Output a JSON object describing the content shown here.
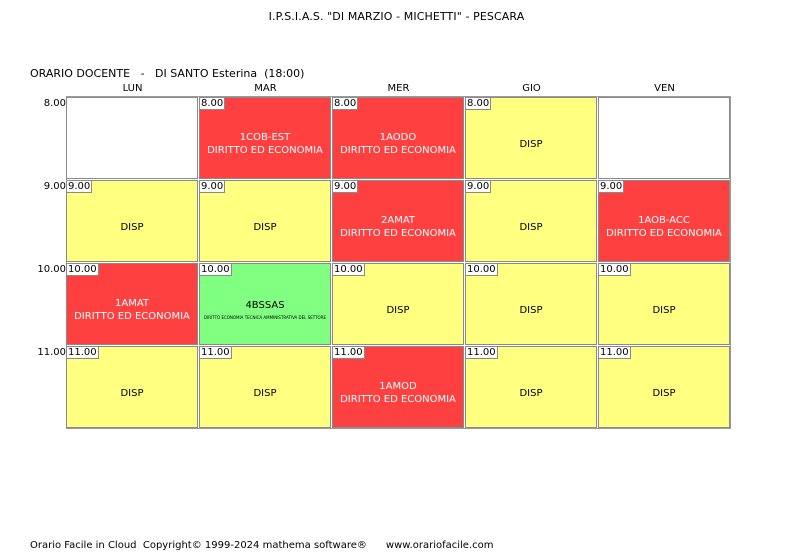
{
  "header": {
    "school": "I.P.S.I.A.S. \"DI MARZIO - MICHETTI\" - PESCARA",
    "teacher_line": "ORARIO DOCENTE   -   DI SANTO Esterina  (18:00)"
  },
  "days": [
    "LUN",
    "MAR",
    "MER",
    "GIO",
    "VEN"
  ],
  "hours": [
    "8.00",
    "9.00",
    "10.00",
    "11.00"
  ],
  "colors": {
    "lesson": "#ff4040",
    "disp": "#ffff80",
    "special": "#80ff80",
    "empty": "#ffffff"
  },
  "grid": [
    [
      {
        "time": "",
        "line1": "",
        "line2": "",
        "kind": "empty"
      },
      {
        "time": "8.00",
        "line1": "1COB-EST",
        "line2": "DIRITTO ED ECONOMIA",
        "kind": "lesson"
      },
      {
        "time": "8.00",
        "line1": "1AODO",
        "line2": "DIRITTO ED ECONOMIA",
        "kind": "lesson"
      },
      {
        "time": "8.00",
        "line1": "DISP",
        "line2": "",
        "kind": "disp"
      },
      {
        "time": "",
        "line1": "",
        "line2": "",
        "kind": "empty"
      }
    ],
    [
      {
        "time": "9.00",
        "line1": "DISP",
        "line2": "",
        "kind": "disp"
      },
      {
        "time": "9.00",
        "line1": "DISP",
        "line2": "",
        "kind": "disp"
      },
      {
        "time": "9.00",
        "line1": "2AMAT",
        "line2": "DIRITTO ED ECONOMIA",
        "kind": "lesson"
      },
      {
        "time": "9.00",
        "line1": "DISP",
        "line2": "",
        "kind": "disp"
      },
      {
        "time": "9.00",
        "line1": "1AOB-ACC",
        "line2": "DIRITTO ED ECONOMIA",
        "kind": "lesson"
      }
    ],
    [
      {
        "time": "10.00",
        "line1": "1AMAT",
        "line2": "DIRITTO ED ECONOMIA",
        "kind": "lesson"
      },
      {
        "time": "10.00",
        "line1": "4BSSAS",
        "line2": "DIRITTO ECONOMIA TECNICA AMMINISTRATIVA DEL SETTORE",
        "kind": "special"
      },
      {
        "time": "10.00",
        "line1": "DISP",
        "line2": "",
        "kind": "disp"
      },
      {
        "time": "10.00",
        "line1": "DISP",
        "line2": "",
        "kind": "disp"
      },
      {
        "time": "10.00",
        "line1": "DISP",
        "line2": "",
        "kind": "disp"
      }
    ],
    [
      {
        "time": "11.00",
        "line1": "DISP",
        "line2": "",
        "kind": "disp"
      },
      {
        "time": "11.00",
        "line1": "DISP",
        "line2": "",
        "kind": "disp"
      },
      {
        "time": "11.00",
        "line1": "1AMOD",
        "line2": "DIRITTO ED ECONOMIA",
        "kind": "lesson"
      },
      {
        "time": "11.00",
        "line1": "DISP",
        "line2": "",
        "kind": "disp"
      },
      {
        "time": "11.00",
        "line1": "DISP",
        "line2": "",
        "kind": "disp"
      }
    ]
  ],
  "footer": "Orario Facile in Cloud  Copyright© 1999-2024 mathema software®      www.orariofacile.com"
}
